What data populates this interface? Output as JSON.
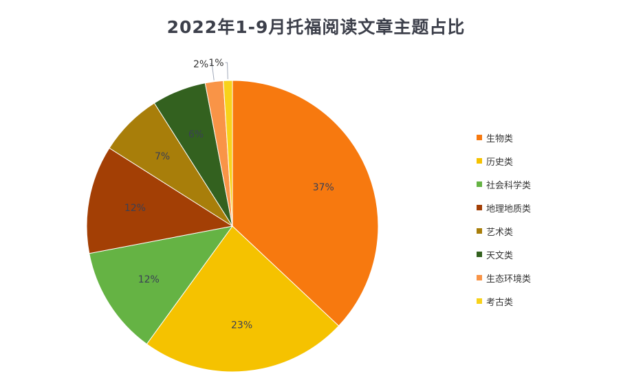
{
  "chart_data": {
    "type": "pie",
    "title": "2022年1-9月托福阅读文章主题占比",
    "categories": [
      "生物类",
      "历史类",
      "社会科学类",
      "地理地质类",
      "艺术类",
      "天文类",
      "生态环境类",
      "考古类"
    ],
    "values": [
      37,
      23,
      12,
      12,
      7,
      6,
      2,
      1
    ],
    "labels": [
      "37%",
      "23%",
      "12%",
      "12%",
      "7%",
      "6%",
      "2%",
      "1%"
    ],
    "colors": [
      "#f7790f",
      "#f5c200",
      "#65b344",
      "#a33f05",
      "#a87e0a",
      "#33611f",
      "#f99447",
      "#f8d21a"
    ],
    "legend_position": "right"
  }
}
